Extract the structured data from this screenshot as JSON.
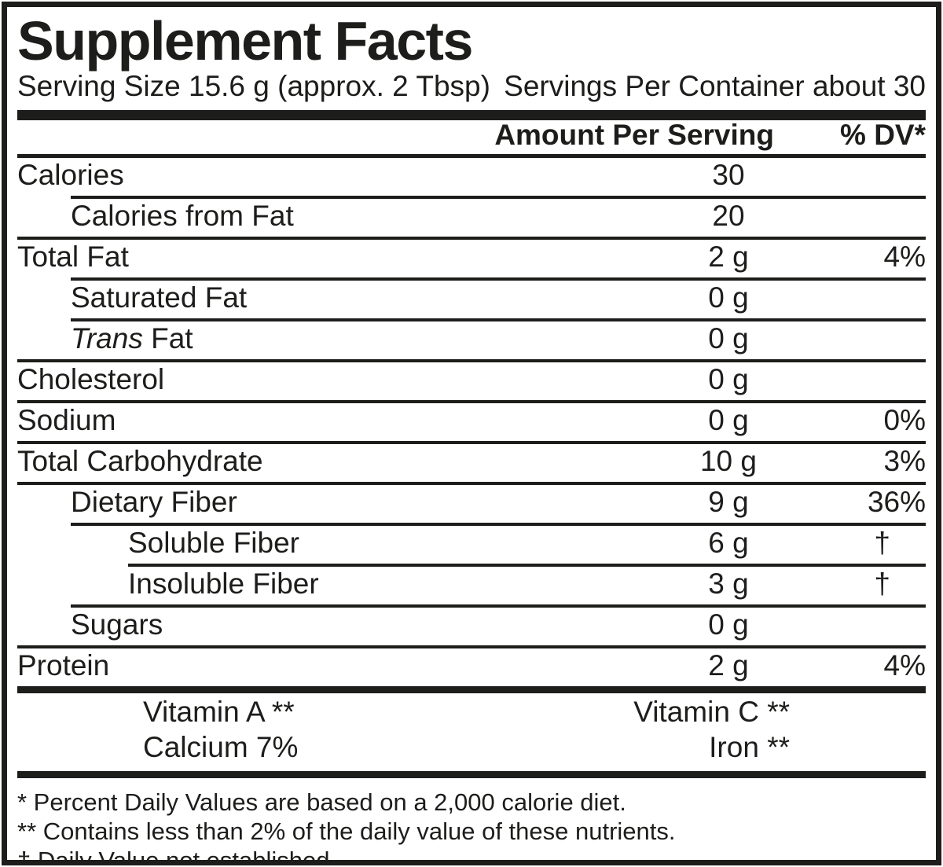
{
  "colors": {
    "ink": "#1d1d1b",
    "background": "#ffffff"
  },
  "title": "Supplement Facts",
  "serving": {
    "serving_size": "Serving Size 15.6 g (approx. 2 Tbsp)",
    "servings_per_container": "Servings Per Container about 30"
  },
  "column_headers": {
    "amount": "Amount Per Serving",
    "daily_value": "% DV*"
  },
  "nutrient_rows": [
    {
      "label": "Calories",
      "amount": "30",
      "dv": "",
      "indent": 0,
      "rule_level": null
    },
    {
      "label": "Calories from Fat",
      "amount": "20",
      "dv": "",
      "indent": 1,
      "rule_level": 1
    },
    {
      "label": "Total Fat",
      "amount": "2 g",
      "dv": "4%",
      "indent": 0,
      "rule_level": 0
    },
    {
      "label": "Saturated Fat",
      "amount": "0 g",
      "dv": "",
      "indent": 1,
      "rule_level": 1
    },
    {
      "label": "Trans Fat",
      "amount": "0 g",
      "dv": "",
      "indent": 1,
      "rule_level": 1,
      "label_parts": [
        {
          "text": "Trans",
          "italic": true
        },
        {
          "text": " Fat",
          "italic": false
        }
      ]
    },
    {
      "label": "Cholesterol",
      "amount": "0 g",
      "dv": "",
      "indent": 0,
      "rule_level": 0
    },
    {
      "label": "Sodium",
      "amount": "0 g",
      "dv": "0%",
      "indent": 0,
      "rule_level": 0
    },
    {
      "label": "Total Carbohydrate",
      "amount": "10 g",
      "dv": "3%",
      "indent": 0,
      "rule_level": 0
    },
    {
      "label": "Dietary Fiber",
      "amount": "9 g",
      "dv": "36%",
      "indent": 1,
      "rule_level": 0
    },
    {
      "label": "Soluble Fiber",
      "amount": "6 g",
      "dv": "†",
      "indent": 2,
      "rule_level": 1
    },
    {
      "label": "Insoluble Fiber",
      "amount": "3 g",
      "dv": "†",
      "indent": 2,
      "rule_level": 2
    },
    {
      "label": "Sugars",
      "amount": "0 g",
      "dv": "",
      "indent": 1,
      "rule_level": 1
    },
    {
      "label": "Protein",
      "amount": "2 g",
      "dv": "4%",
      "indent": 0,
      "rule_level": 0
    }
  ],
  "vitamin_rows": [
    {
      "left": "Vitamin A **",
      "right": "Vitamin C **"
    },
    {
      "left": "Calcium 7%",
      "right": "Iron **"
    }
  ],
  "footnotes": [
    "* Percent Daily Values are based on a 2,000 calorie diet.",
    "** Contains less than 2% of the daily value of these nutrients.",
    "† Daily Value not established."
  ]
}
